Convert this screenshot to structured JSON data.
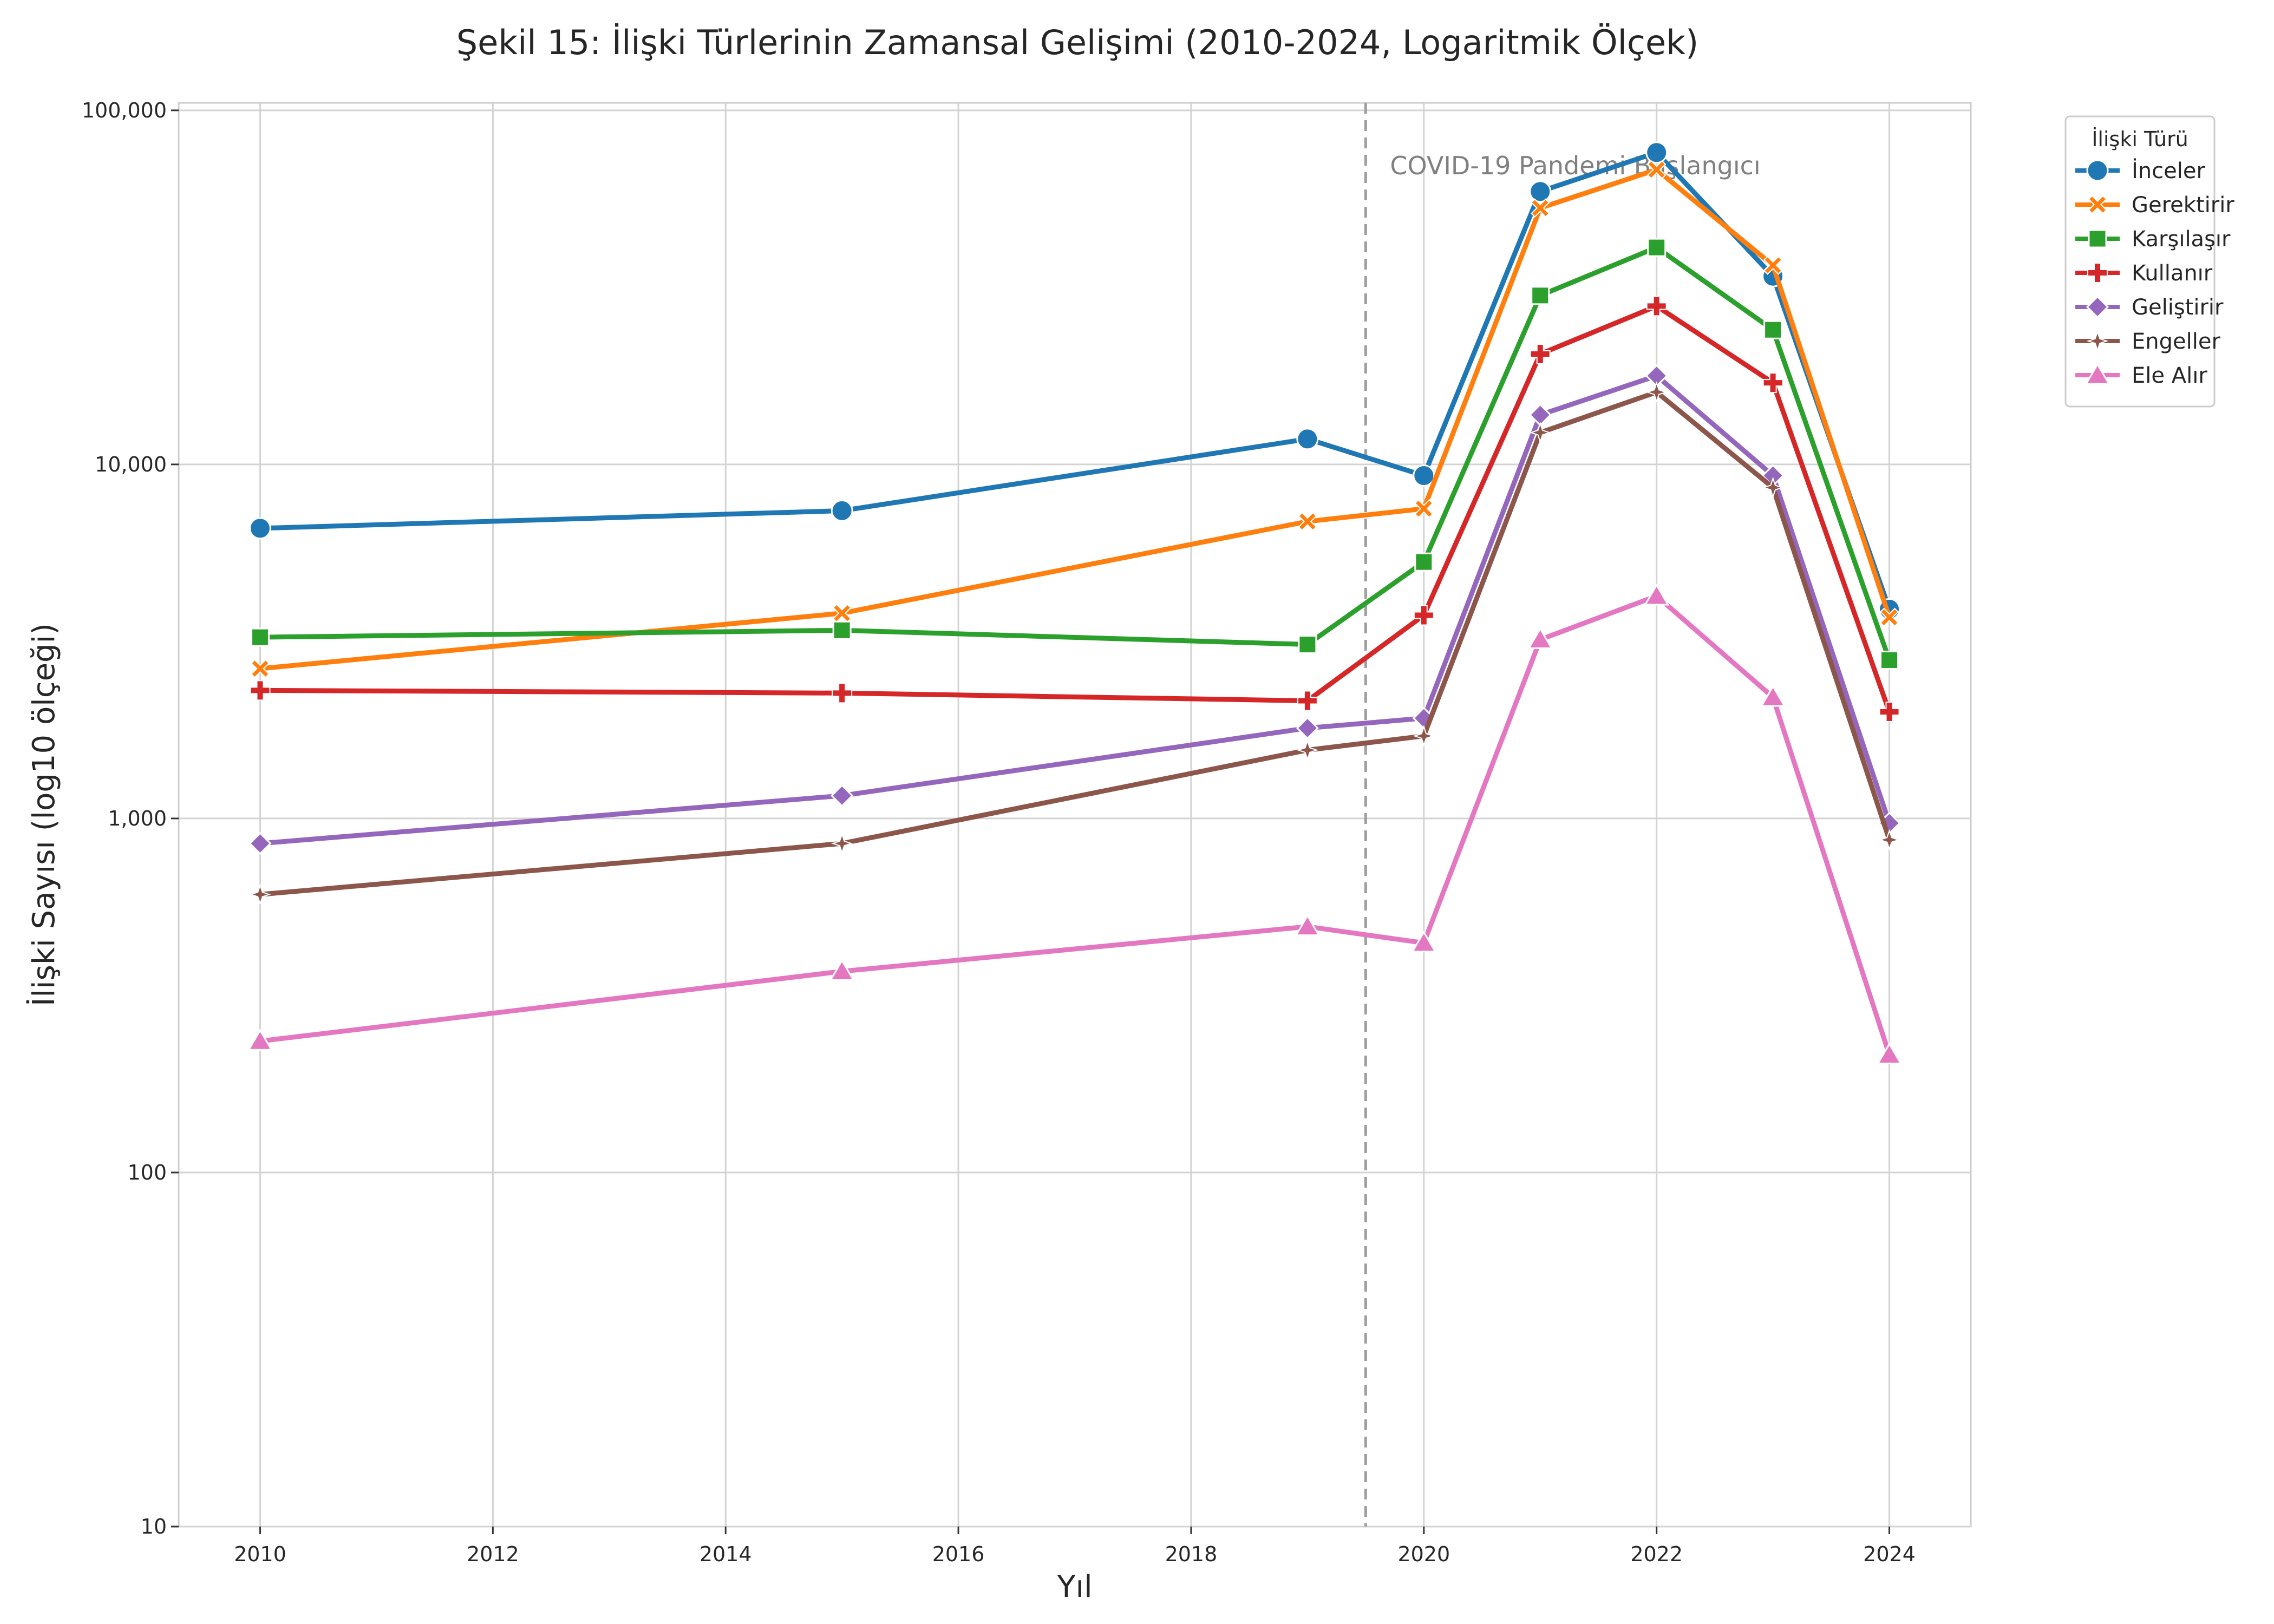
{
  "chart_data": {
    "type": "line",
    "title": "Şekil 15: İlişki Türlerinin Zamansal Gelişimi (2010-2024, Logaritmik Ölçek)",
    "xlabel": "Yıl",
    "ylabel": "İlişki Sayısı (log10 ölçeği)",
    "x": [
      2010,
      2015,
      2019,
      2020,
      2021,
      2022,
      2023,
      2024
    ],
    "x_ticks": [
      2010,
      2012,
      2014,
      2016,
      2018,
      2020,
      2022,
      2024
    ],
    "x_tick_labels": [
      "2010",
      "2012",
      "2014",
      "2016",
      "2018",
      "2020",
      "2022",
      "2024"
    ],
    "xlim": [
      2009.3,
      2024.7
    ],
    "y_scale": "log",
    "ylim": [
      10,
      105000
    ],
    "y_ticks": [
      10,
      100,
      1000,
      10000,
      100000
    ],
    "y_tick_labels": [
      "10",
      "100",
      "1,000",
      "10,000",
      "100,000"
    ],
    "grid": true,
    "legend": {
      "title": "İlişki Türü",
      "position": "outside-top-right"
    },
    "annotation": {
      "x": 2019.5,
      "text": "COVID-19 Pandemi Başlangıcı",
      "line_color": "#9e9e9e"
    },
    "series": [
      {
        "name": "İnceler",
        "color": "#1f77b4",
        "marker": "circle",
        "values": [
          6600,
          7400,
          11800,
          9300,
          59000,
          76000,
          34000,
          3900
        ]
      },
      {
        "name": "Gerektirir",
        "color": "#ff7f0e",
        "marker": "x",
        "values": [
          2650,
          3800,
          6900,
          7500,
          53000,
          68000,
          36500,
          3700
        ]
      },
      {
        "name": "Karşılaşır",
        "color": "#2ca02c",
        "marker": "square",
        "values": [
          3250,
          3400,
          3100,
          5300,
          30000,
          41000,
          24000,
          2800
        ]
      },
      {
        "name": "Kullanır",
        "color": "#d62728",
        "marker": "plus",
        "values": [
          2300,
          2260,
          2150,
          3750,
          20500,
          28000,
          17000,
          2000
        ]
      },
      {
        "name": "Geliştirir",
        "color": "#9467bd",
        "marker": "diamond",
        "values": [
          850,
          1160,
          1800,
          1920,
          13800,
          17800,
          9300,
          970
        ]
      },
      {
        "name": "Engeller",
        "color": "#8c564b",
        "marker": "star",
        "values": [
          610,
          850,
          1560,
          1710,
          12300,
          16000,
          8600,
          870
        ]
      },
      {
        "name": "Ele Alır",
        "color": "#e377c2",
        "marker": "triangle",
        "values": [
          235,
          370,
          495,
          445,
          3200,
          4250,
          2200,
          215
        ]
      }
    ]
  }
}
